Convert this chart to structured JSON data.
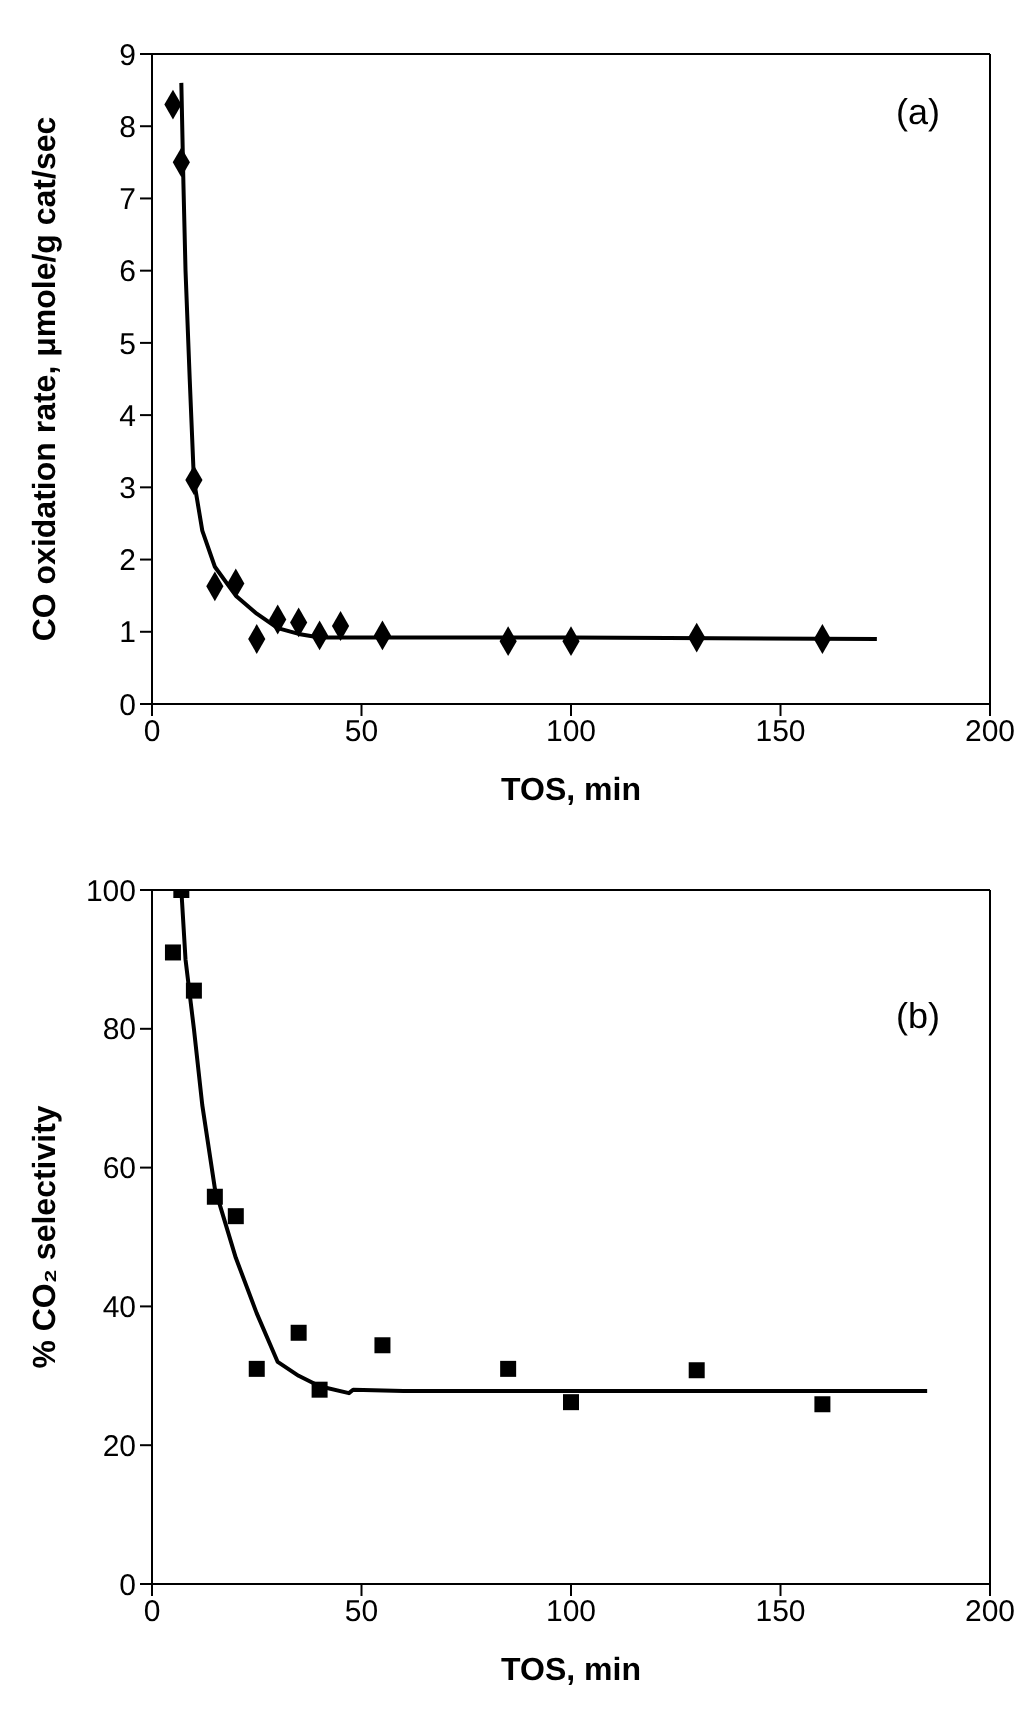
{
  "chart_data": [
    {
      "type": "scatter",
      "xlabel": "TOS, min",
      "ylabel": "CO oxidation rate, μmole/g cat/sec",
      "xlim": [
        0,
        200
      ],
      "xticks": [
        0,
        50,
        100,
        150,
        200
      ],
      "ylim": [
        0,
        9
      ],
      "yticks": [
        0,
        1,
        2,
        3,
        4,
        5,
        6,
        7,
        8,
        9
      ],
      "grid": false,
      "legend": false,
      "annotations": [
        "(a)"
      ],
      "series": [
        {
          "marker": "diamond",
          "color": "#000000",
          "x": [
            5,
            7,
            10,
            15,
            20,
            25,
            30,
            35,
            40,
            45,
            55,
            85,
            100,
            130,
            160
          ],
          "values": [
            8.3,
            7.5,
            3.1,
            1.63,
            1.67,
            0.9,
            1.17,
            1.13,
            0.95,
            1.08,
            0.95,
            0.87,
            0.87,
            0.92,
            0.9
          ]
        },
        {
          "type": "line",
          "marker": "none",
          "line_style": "solid",
          "color": "#000000",
          "x": [
            7,
            7.5,
            8,
            9,
            10,
            12,
            15,
            20,
            25,
            30,
            35,
            40,
            50,
            100,
            173
          ],
          "values": [
            8.6,
            7.2,
            6,
            4.5,
            3.1,
            2.4,
            1.9,
            1.5,
            1.25,
            1.05,
            0.97,
            0.92,
            0.92,
            0.92,
            0.9
          ]
        }
      ]
    },
    {
      "type": "scatter",
      "xlabel": "TOS, min",
      "ylabel": "% CO₂ selectivity",
      "xlim": [
        0,
        200
      ],
      "xticks": [
        0,
        50,
        100,
        150,
        200
      ],
      "ylim": [
        0,
        100
      ],
      "yticks": [
        0,
        20,
        40,
        60,
        80,
        100
      ],
      "grid": false,
      "legend": false,
      "annotations": [
        "(b)"
      ],
      "series": [
        {
          "marker": "square",
          "color": "#000000",
          "x": [
            5,
            7,
            10,
            15,
            20,
            25,
            35,
            40,
            55,
            85,
            100,
            130,
            160
          ],
          "values": [
            91,
            100,
            85.5,
            55.8,
            53,
            31,
            36.2,
            28,
            34.4,
            31,
            26.2,
            30.8,
            25.9
          ]
        },
        {
          "type": "line",
          "marker": "none",
          "line_style": "solid",
          "color": "#000000",
          "x": [
            7,
            8,
            10,
            12,
            15,
            20,
            25,
            30,
            35,
            40,
            47,
            48,
            60,
            185
          ],
          "values": [
            100,
            90,
            80,
            69,
            57,
            47,
            39,
            32,
            30,
            28.5,
            27.5,
            28,
            27.8,
            27.8
          ]
        }
      ]
    }
  ]
}
